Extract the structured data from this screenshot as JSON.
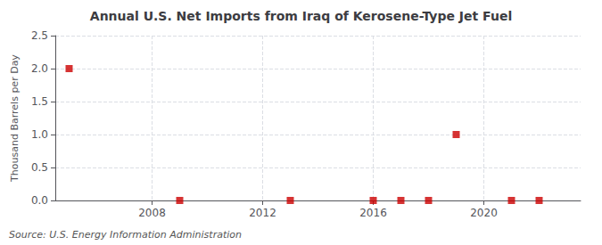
{
  "chart_data": {
    "type": "scatter",
    "title": "Annual U.S. Net Imports from Iraq of Kerosene-Type Jet Fuel",
    "ylabel": "Thousand Barrels per Day",
    "annotations": [
      "Source: U.S. Energy Information Administration"
    ],
    "x": [
      2005,
      2009,
      2013,
      2016,
      2017,
      2018,
      2019,
      2021,
      2022
    ],
    "values": [
      2.0,
      0.0,
      0.0,
      0.0,
      0.0,
      0.0,
      1.0,
      0.0,
      0.0
    ],
    "color": "#cc0000",
    "marker": "square",
    "xlim": [
      2004.5,
      2023.5
    ],
    "xticks": [
      2008,
      2012,
      2016,
      2020
    ],
    "ylim": [
      0.0,
      2.5
    ],
    "yticks": [
      {
        "value": 0.0,
        "label": "0.0"
      },
      0.5,
      {
        "value": 1.0,
        "label": "1.0"
      },
      1.5,
      {
        "value": 2.0,
        "label": "2.0"
      },
      2.5
    ],
    "grid": true
  }
}
